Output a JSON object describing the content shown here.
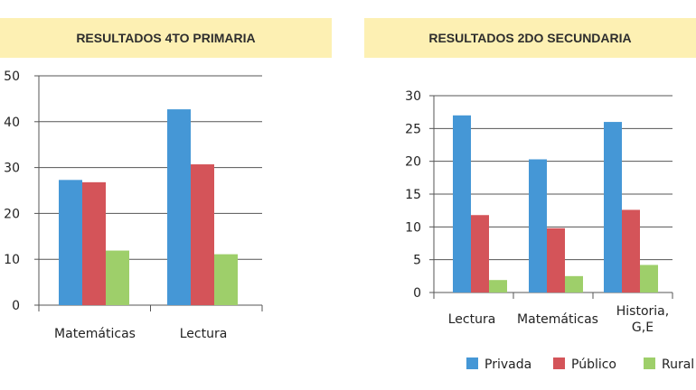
{
  "colors": {
    "privada": "#4597d6",
    "publico": "#d45459",
    "rural": "#9ecf6a",
    "banner": "#fdf0b3"
  },
  "chart_data": [
    {
      "type": "bar",
      "title": "RESULTADOS 4TO PRIMARIA",
      "categories": [
        "Matemáticas",
        "Lectura"
      ],
      "series": [
        {
          "name": "Privada",
          "values": [
            27.3,
            42.7
          ]
        },
        {
          "name": "Público",
          "values": [
            26.8,
            30.7
          ]
        },
        {
          "name": "Rural",
          "values": [
            11.9,
            11.1
          ]
        }
      ],
      "yticks": [
        "0",
        "10",
        "20",
        "30",
        "40",
        "50"
      ],
      "ylim": [
        0,
        50
      ],
      "grid": true
    },
    {
      "type": "bar",
      "title": "RESULTADOS 2DO SECUNDARIA",
      "categories": [
        "Lectura",
        "Matemáticas",
        "Historia, G,E"
      ],
      "category_lines": [
        [
          "Lectura"
        ],
        [
          "Matemáticas"
        ],
        [
          "Historia,",
          "G,E"
        ]
      ],
      "series": [
        {
          "name": "Privada",
          "values": [
            27.0,
            20.3,
            26.0
          ]
        },
        {
          "name": "Público",
          "values": [
            11.8,
            9.8,
            12.6
          ]
        },
        {
          "name": "Rural",
          "values": [
            1.9,
            2.5,
            4.2
          ]
        }
      ],
      "yticks": [
        "0",
        "5",
        "10",
        "15",
        "20",
        "25",
        "30"
      ],
      "ylim": [
        0,
        30
      ],
      "grid": true,
      "legend": {
        "placement": "bottom-right",
        "entries": [
          "Privada",
          "Público",
          "Rural"
        ]
      }
    }
  ]
}
